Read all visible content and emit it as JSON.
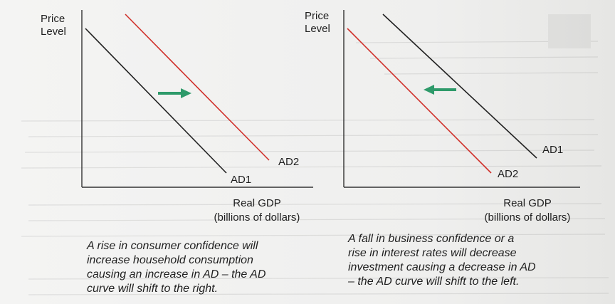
{
  "panels": [
    {
      "y_axis_label": "Price\nLevel",
      "x_axis_label": "Real GDP\n(billions of dollars)",
      "curves": [
        {
          "label": "AD1",
          "color": "#222222"
        },
        {
          "label": "AD2",
          "color": "#d0302a"
        }
      ],
      "shift_arrow": {
        "direction": "right",
        "color": "#2e9a6a"
      },
      "caption": "A rise in consumer confidence will\nincrease household  consumption\ncausing an increase in AD – the AD\ncurve will shift to the right."
    },
    {
      "y_axis_label": "Price\nLevel",
      "x_axis_label": "Real GDP\n(billions of dollars)",
      "curves": [
        {
          "label": "AD1",
          "color": "#222222"
        },
        {
          "label": "AD2",
          "color": "#d0302a"
        }
      ],
      "shift_arrow": {
        "direction": "left",
        "color": "#2e9a6a"
      },
      "caption": "A fall in business confidence or a\nrise in interest rates will decrease\ninvestment causing a decrease in AD\n– the AD curve will shift to the left."
    }
  ]
}
